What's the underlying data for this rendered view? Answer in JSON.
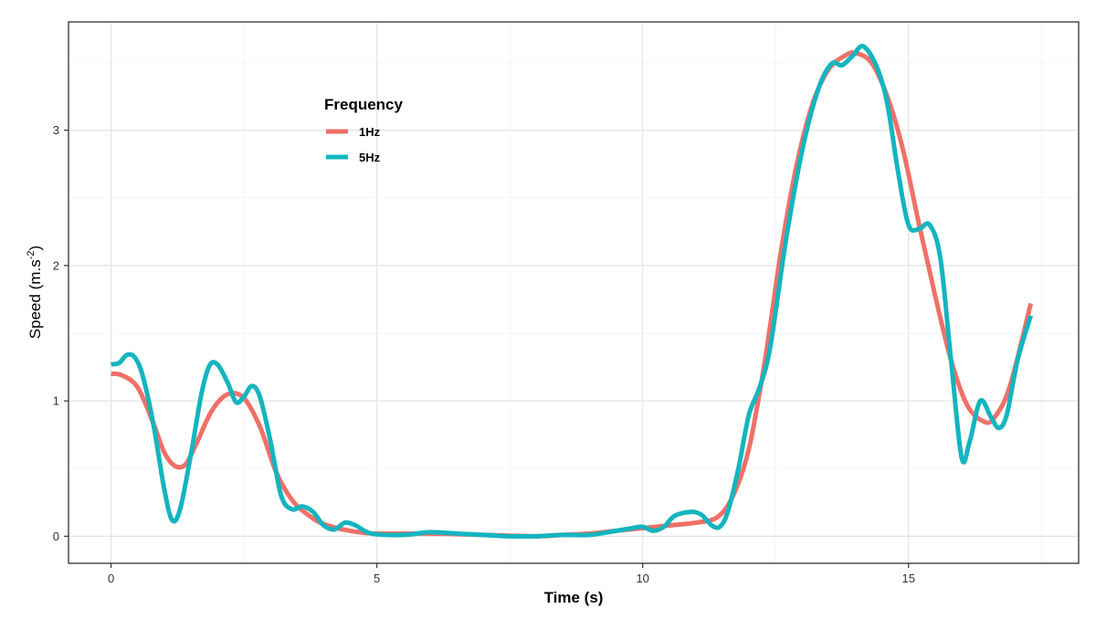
{
  "chart_data": {
    "type": "line",
    "title": "",
    "xlabel": "Time (s)",
    "ylabel_main": "Speed  (m.s",
    "ylabel_sup": "-2",
    "ylabel_close": ")",
    "xlim": [
      -0.8,
      18.2
    ],
    "ylim": [
      -0.2,
      3.8
    ],
    "x_ticks": [
      0,
      5,
      10,
      15
    ],
    "y_ticks": [
      0,
      1,
      2,
      3
    ],
    "grid": true,
    "legend": {
      "title": "Frequency",
      "position": "upper-left"
    },
    "series": [
      {
        "name": "1Hz",
        "color": "#F07068",
        "points": [
          [
            0.0,
            1.2
          ],
          [
            0.2,
            1.19
          ],
          [
            0.5,
            1.1
          ],
          [
            0.8,
            0.83
          ],
          [
            1.0,
            0.62
          ],
          [
            1.2,
            0.52
          ],
          [
            1.4,
            0.53
          ],
          [
            1.6,
            0.68
          ],
          [
            1.9,
            0.93
          ],
          [
            2.2,
            1.05
          ],
          [
            2.5,
            1.02
          ],
          [
            2.8,
            0.81
          ],
          [
            3.1,
            0.48
          ],
          [
            3.4,
            0.27
          ],
          [
            3.7,
            0.16
          ],
          [
            4.0,
            0.09
          ],
          [
            4.5,
            0.04
          ],
          [
            5.0,
            0.02
          ],
          [
            6.0,
            0.02
          ],
          [
            7.0,
            0.01
          ],
          [
            8.0,
            0.0
          ],
          [
            8.5,
            0.01
          ],
          [
            9.0,
            0.02
          ],
          [
            9.5,
            0.04
          ],
          [
            10.0,
            0.06
          ],
          [
            10.5,
            0.08
          ],
          [
            11.0,
            0.1
          ],
          [
            11.4,
            0.14
          ],
          [
            11.7,
            0.3
          ],
          [
            12.0,
            0.65
          ],
          [
            12.3,
            1.3
          ],
          [
            12.6,
            2.1
          ],
          [
            12.9,
            2.75
          ],
          [
            13.2,
            3.2
          ],
          [
            13.5,
            3.45
          ],
          [
            13.8,
            3.55
          ],
          [
            14.0,
            3.57
          ],
          [
            14.3,
            3.5
          ],
          [
            14.6,
            3.25
          ],
          [
            14.9,
            2.85
          ],
          [
            15.2,
            2.3
          ],
          [
            15.5,
            1.78
          ],
          [
            15.8,
            1.3
          ],
          [
            16.1,
            0.97
          ],
          [
            16.4,
            0.85
          ],
          [
            16.6,
            0.87
          ],
          [
            16.9,
            1.1
          ],
          [
            17.3,
            1.72
          ]
        ]
      },
      {
        "name": "5Hz",
        "color": "#14B5BF",
        "points": [
          [
            0.0,
            1.27
          ],
          [
            0.15,
            1.28
          ],
          [
            0.3,
            1.34
          ],
          [
            0.45,
            1.32
          ],
          [
            0.6,
            1.18
          ],
          [
            0.8,
            0.82
          ],
          [
            1.0,
            0.35
          ],
          [
            1.15,
            0.12
          ],
          [
            1.3,
            0.2
          ],
          [
            1.5,
            0.6
          ],
          [
            1.7,
            1.05
          ],
          [
            1.85,
            1.26
          ],
          [
            2.0,
            1.27
          ],
          [
            2.2,
            1.13
          ],
          [
            2.35,
            0.99
          ],
          [
            2.5,
            1.03
          ],
          [
            2.65,
            1.11
          ],
          [
            2.8,
            1.03
          ],
          [
            3.0,
            0.7
          ],
          [
            3.2,
            0.3
          ],
          [
            3.4,
            0.2
          ],
          [
            3.6,
            0.22
          ],
          [
            3.8,
            0.18
          ],
          [
            4.0,
            0.08
          ],
          [
            4.2,
            0.05
          ],
          [
            4.4,
            0.1
          ],
          [
            4.6,
            0.08
          ],
          [
            4.9,
            0.02
          ],
          [
            5.5,
            0.01
          ],
          [
            6.0,
            0.03
          ],
          [
            6.5,
            0.02
          ],
          [
            7.0,
            0.01
          ],
          [
            7.5,
            0.0
          ],
          [
            8.0,
            0.0
          ],
          [
            8.5,
            0.01
          ],
          [
            9.0,
            0.01
          ],
          [
            9.5,
            0.04
          ],
          [
            9.8,
            0.06
          ],
          [
            10.0,
            0.07
          ],
          [
            10.2,
            0.04
          ],
          [
            10.4,
            0.07
          ],
          [
            10.6,
            0.15
          ],
          [
            10.9,
            0.18
          ],
          [
            11.1,
            0.16
          ],
          [
            11.3,
            0.08
          ],
          [
            11.45,
            0.07
          ],
          [
            11.6,
            0.18
          ],
          [
            11.8,
            0.5
          ],
          [
            12.0,
            0.9
          ],
          [
            12.2,
            1.1
          ],
          [
            12.4,
            1.4
          ],
          [
            12.7,
            2.2
          ],
          [
            13.0,
            2.85
          ],
          [
            13.3,
            3.3
          ],
          [
            13.55,
            3.49
          ],
          [
            13.75,
            3.48
          ],
          [
            13.95,
            3.55
          ],
          [
            14.15,
            3.62
          ],
          [
            14.4,
            3.47
          ],
          [
            14.6,
            3.2
          ],
          [
            14.8,
            2.7
          ],
          [
            15.0,
            2.3
          ],
          [
            15.2,
            2.27
          ],
          [
            15.4,
            2.3
          ],
          [
            15.6,
            2.05
          ],
          [
            15.8,
            1.3
          ],
          [
            16.0,
            0.58
          ],
          [
            16.15,
            0.7
          ],
          [
            16.35,
            1.0
          ],
          [
            16.55,
            0.88
          ],
          [
            16.7,
            0.8
          ],
          [
            16.85,
            0.9
          ],
          [
            17.05,
            1.3
          ],
          [
            17.3,
            1.63
          ]
        ]
      }
    ]
  }
}
